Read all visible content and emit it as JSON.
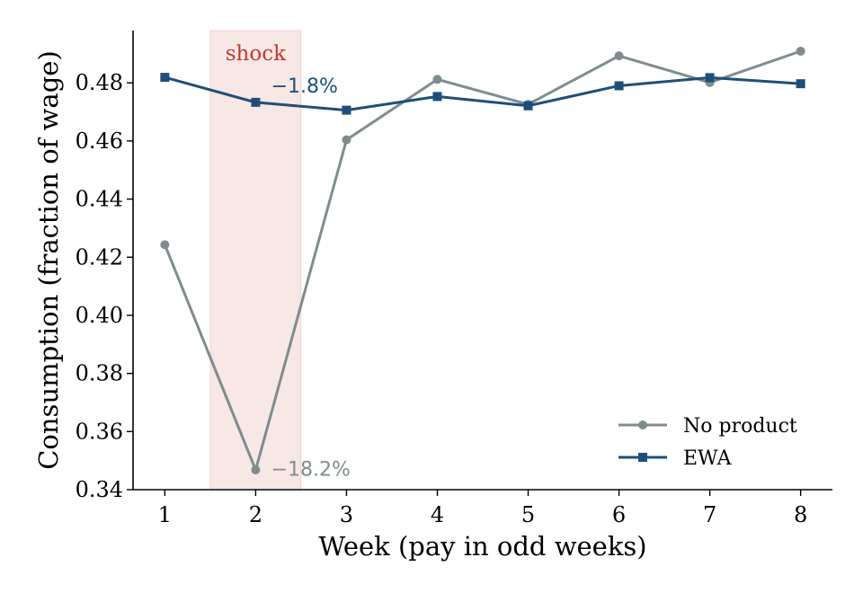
{
  "chart_data": {
    "type": "line",
    "xlabel": "Week (pay in odd weeks)",
    "ylabel": "Consumption (fraction of wage)",
    "x": [
      1,
      2,
      3,
      4,
      5,
      6,
      7,
      8
    ],
    "xlim": [
      0.65,
      8.35
    ],
    "ylim": [
      0.34,
      0.498
    ],
    "x_ticks": [
      "1",
      "2",
      "3",
      "4",
      "5",
      "6",
      "7",
      "8"
    ],
    "y_ticks": [
      "0.34",
      "0.36",
      "0.38",
      "0.40",
      "0.42",
      "0.44",
      "0.46",
      "0.48"
    ],
    "grid": false,
    "legend_position": "lower-right",
    "series": [
      {
        "name": "No product",
        "values": [
          0.4243,
          0.3468,
          0.4604,
          0.4812,
          0.4726,
          0.4893,
          0.4801,
          0.4909
        ],
        "color": "#7f8c8d",
        "marker": "circle"
      },
      {
        "name": "EWA",
        "values": [
          0.4819,
          0.4733,
          0.4706,
          0.4753,
          0.4721,
          0.479,
          0.4818,
          0.4797
        ],
        "color": "#1f4e79",
        "marker": "square"
      }
    ],
    "shaded_region": {
      "label": "shock",
      "x_range": [
        1.5,
        2.5
      ],
      "color": "#c0392b"
    },
    "annotations": [
      {
        "text": "−1.8%",
        "x": 2.17,
        "y": 0.4767,
        "color": "#1f4e79"
      },
      {
        "text": "−18.2%",
        "x": 2.17,
        "y": 0.3448,
        "color": "#7f8c8d"
      }
    ]
  }
}
